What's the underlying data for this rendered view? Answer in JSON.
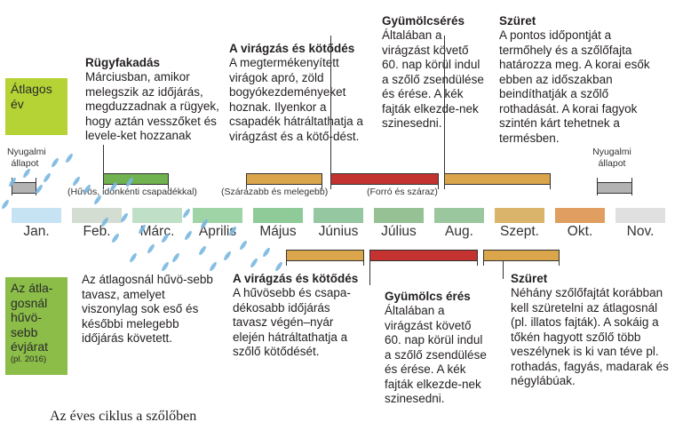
{
  "rows": {
    "average": {
      "label": "Átlagos\név",
      "color": "#b5d334"
    },
    "cool": {
      "label": "Az átla-\ngosnál\nhűvö-\nsebb\névjárat",
      "note": "(pl. 2016)",
      "color": "#8bbd48"
    }
  },
  "months": [
    {
      "label": "Jan.",
      "color": "#c6e3f3"
    },
    {
      "label": "Feb.",
      "color": "#d3ddd2"
    },
    {
      "label": "Márc.",
      "color": "#bfe0c6"
    },
    {
      "label": "Április",
      "color": "#9fd4a6"
    },
    {
      "label": "Május",
      "color": "#8fcb99"
    },
    {
      "label": "Június",
      "color": "#95c7a0"
    },
    {
      "label": "Július",
      "color": "#96c195"
    },
    {
      "label": "Aug.",
      "color": "#9bc79e"
    },
    {
      "label": "Szept.",
      "color": "#d9b46a"
    },
    {
      "label": "Okt.",
      "color": "#e09f60"
    },
    {
      "label": "Nov.",
      "color": "#e0e0e0"
    }
  ],
  "average_phases": {
    "dormant_start": {
      "title": "Nyugalmi\nállapot"
    },
    "budbreak": {
      "title": "Rügyfakadás",
      "text": "Márciusban, amikor melegszik az időjárás, megduzzadnak a rügyek, hogy aztán vesszőket és levele-ket hozzanak",
      "condition": "(Hűvös, időnkénti csapadékkal)"
    },
    "flowering": {
      "title": "A virágzás és kötődés",
      "text": "A megtermékenyített virágok apró, zöld bogyókezdeményeket hoznak. Ilyenkor a csapadék hátráltathatja a virágzást és a kötő-dést.",
      "condition": "(Szárazabb és melegebb)"
    },
    "ripening": {
      "title": "Gyümölcsérés",
      "text": "Általában a virágzást követő 60. nap körül indul a szőlő zsendülése és érése. A kék fajták elkezde-nek szinesedni.",
      "condition": "(Forró és száraz)"
    },
    "harvest": {
      "title": "Szüret",
      "text": "A pontos időpontját a termőhely és a szőlőfajta határozza meg. A korai esők ebben az időszakban beindíthatják a szőlő rothadását. A korai fagyok szintén kárt tehetnek a termésben."
    },
    "dormant_end": {
      "title": "Nyugalmi\nállapot"
    }
  },
  "cool_phases": {
    "spring": {
      "text": "Az átlagosnál hűvö-sebb tavasz, amelyet viszonylag sok eső és későbbi melegebb időjárás követett."
    },
    "flowering": {
      "title": "A virágzás és kötődés",
      "text": "A hűvösebb és csapa-dékosabb időjárás tavasz végén–nyár elején hátráltathatja a szőlő kötődését."
    },
    "ripening": {
      "title": "Gyümölcs érés",
      "text": "Általában a virágzást követő 60. nap körül indul a szőlő zsendülése és érése. A kék fajták elkezde-nek szinesedni."
    },
    "harvest": {
      "title": "Szüret",
      "text": "Néhány szőlőfajtát korábban kell szüretelni az átlagosnál (pl. illatos fajták). A sokáig a tőkén hagyott szőlő több veszélynek is ki van téve pl. rothadás, fagyás, madarak és négylábúak."
    }
  },
  "bar_colors": {
    "grey": "#b3b3b3",
    "green": "#6fb24f",
    "gold": "#dba64b",
    "red": "#c4332f",
    "rain": "#7ab8e0"
  },
  "caption": "Az éves ciklus a szőlőben"
}
